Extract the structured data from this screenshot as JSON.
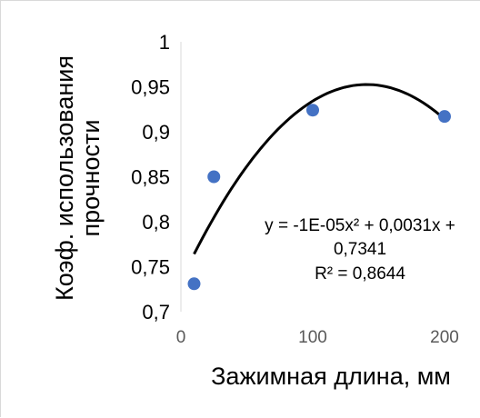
{
  "chart_data": {
    "type": "scatter",
    "title": "",
    "xlabel": "Зажимная длина, мм",
    "ylabel_lines": [
      "Коэф. использования",
      "прочности"
    ],
    "xlim": [
      0,
      200
    ],
    "ylim": [
      0.7,
      1
    ],
    "x_ticks": [
      0,
      100,
      200
    ],
    "x_tick_labels": [
      "0",
      "100",
      "200"
    ],
    "y_ticks": [
      0.7,
      0.75,
      0.8,
      0.85,
      0.9,
      0.95,
      1
    ],
    "y_tick_labels": [
      "0,7",
      "0,75",
      "0,8",
      "0,85",
      "0,9",
      "0,95",
      "1"
    ],
    "grid": false,
    "legend": "none",
    "series": [
      {
        "points": [
          {
            "x": 10,
            "y": 0.731
          },
          {
            "x": 25,
            "y": 0.85
          },
          {
            "x": 100,
            "y": 0.924
          },
          {
            "x": 200,
            "y": 0.917
          }
        ],
        "color": "#4472c4"
      }
    ],
    "trendline": {
      "type": "polynomial",
      "coefficients": {
        "a": -1.1e-05,
        "b": 0.0031,
        "c": 0.7341
      },
      "x_range": [
        10,
        200
      ],
      "color": "#000000",
      "equation_lines": [
        "y = -1E-05x² + 0,0031x +",
        "0,7341",
        "R² = 0,8644"
      ]
    }
  }
}
